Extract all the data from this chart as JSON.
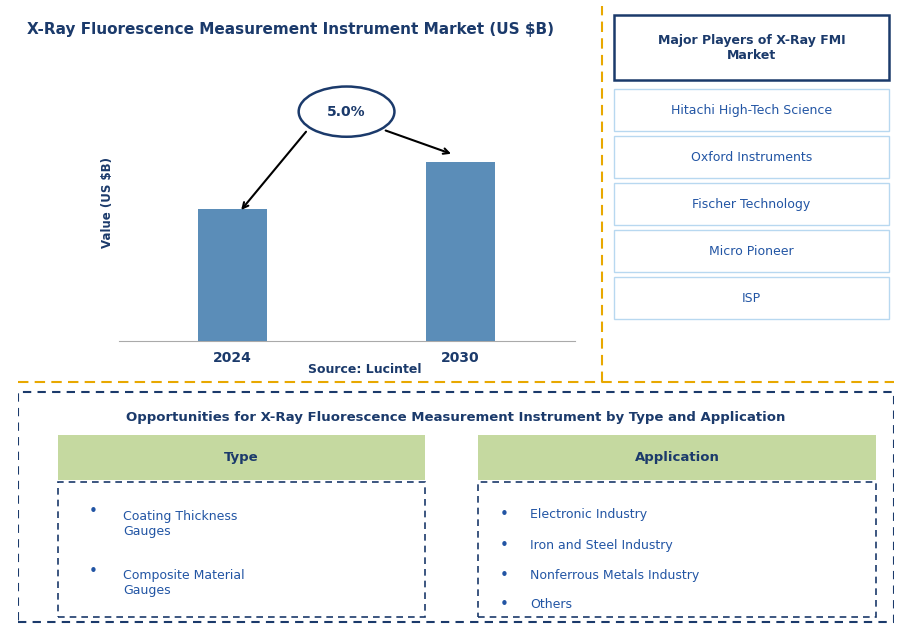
{
  "title": "X-Ray Fluorescence Measurement Instrument Market (US $B)",
  "bar_categories": [
    "2024",
    "2030"
  ],
  "bar_values": [
    0.74,
    1.0
  ],
  "bar_color": "#5B8DB8",
  "ylabel": "Value (US $B)",
  "cagr_label": "5.0%",
  "source_text": "Source: Lucintel",
  "right_panel_title": "Major Players of X-Ray FMI\nMarket",
  "right_panel_players": [
    "Hitachi High-Tech Science",
    "Oxford Instruments",
    "Fischer Technology",
    "Micro Pioneer",
    "ISP"
  ],
  "bottom_title": "Opportunities for X-Ray Fluorescence Measurement Instrument by Type and Application",
  "type_header": "Type",
  "type_items": [
    "Coating Thickness\nGauges",
    "Composite Material\nGauges"
  ],
  "app_header": "Application",
  "app_items": [
    "Electronic Industry",
    "Iron and Steel Industry",
    "Nonferrous Metals Industry",
    "Others"
  ],
  "dark_blue": "#1B3A6B",
  "medium_blue": "#2255A4",
  "bar_blue": "#5B8DB8",
  "player_box_border": "#B8D8F0",
  "player_box_fill": "#FFFFFF",
  "green_header": "#C5D9A0",
  "orange_dashed": "#E8A800",
  "title_color": "#1B3A6B",
  "source_color": "#1B3A6B"
}
